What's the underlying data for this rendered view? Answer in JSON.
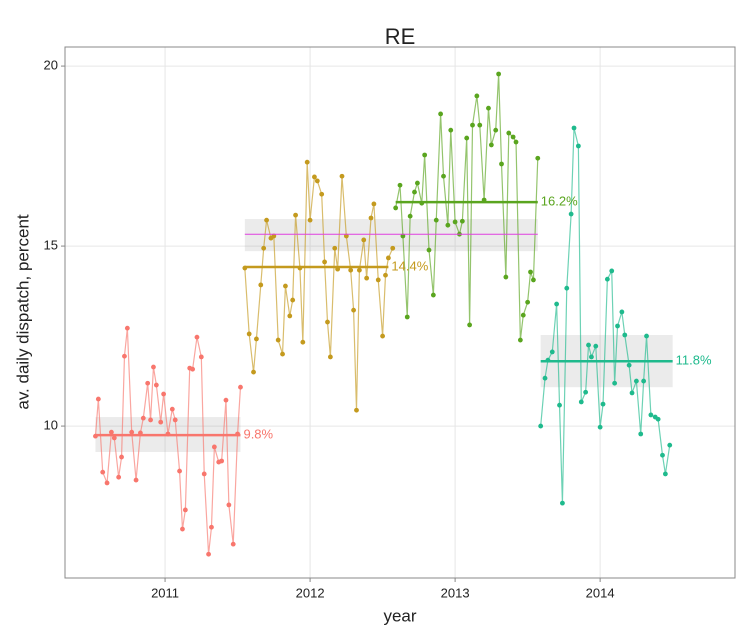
{
  "chart_data": {
    "type": "line",
    "title": "RE",
    "xlabel": "year",
    "ylabel": "av. daily dispatch, percent",
    "xlim": [
      2010.31,
      2014.93
    ],
    "ylim": [
      5.78,
      20.53
    ],
    "xticks": [
      2011,
      2012,
      2013,
      2014
    ],
    "yticks": [
      10,
      15,
      20
    ],
    "grid": true,
    "series": [
      {
        "color": "#f8766d",
        "x": [
          2010.52,
          2010.54,
          2010.57,
          2010.6,
          2010.63,
          2010.65,
          2010.68,
          2010.7,
          2010.72,
          2010.74,
          2010.77,
          2010.8,
          2010.83,
          2010.85,
          2010.88,
          2010.9,
          2010.92,
          2010.94,
          2010.97,
          2010.99,
          2011.02,
          2011.05,
          2011.07,
          2011.1,
          2011.12,
          2011.14,
          2011.17,
          2011.19,
          2011.22,
          2011.25,
          2011.27,
          2011.3,
          2011.32,
          2011.34,
          2011.37,
          2011.39,
          2011.42,
          2011.44,
          2011.47,
          2011.5,
          2011.52
        ],
        "values": [
          9.72,
          10.75,
          8.72,
          8.42,
          9.83,
          9.67,
          8.58,
          9.14,
          11.94,
          12.72,
          9.83,
          8.5,
          9.81,
          10.22,
          11.19,
          10.17,
          11.64,
          11.14,
          10.11,
          10.89,
          9.78,
          10.47,
          10.17,
          8.75,
          7.14,
          7.67,
          11.61,
          11.58,
          12.47,
          11.92,
          8.67,
          6.44,
          7.19,
          9.42,
          9.0,
          9.03,
          10.72,
          7.81,
          6.72,
          9.78,
          11.08
        ]
      },
      {
        "color": "#c49a1e",
        "x": [
          2011.55,
          2011.58,
          2011.61,
          2011.63,
          2011.66,
          2011.68,
          2011.7,
          2011.73,
          2011.75,
          2011.78,
          2011.81,
          2011.83,
          2011.86,
          2011.88,
          2011.9,
          2011.93,
          2011.95,
          2011.98,
          2012.0,
          2012.03,
          2012.05,
          2012.08,
          2012.1,
          2012.12,
          2012.14,
          2012.17,
          2012.19,
          2012.22,
          2012.25,
          2012.28,
          2012.3,
          2012.32,
          2012.34,
          2012.37,
          2012.39,
          2012.42,
          2012.44,
          2012.47,
          2012.5,
          2012.52,
          2012.54,
          2012.57
        ],
        "values": [
          14.39,
          12.56,
          11.5,
          12.42,
          13.92,
          14.94,
          15.72,
          15.22,
          15.28,
          12.39,
          12.0,
          13.89,
          13.06,
          13.5,
          15.86,
          14.39,
          12.33,
          17.33,
          15.72,
          16.92,
          16.81,
          16.44,
          14.56,
          12.89,
          11.92,
          14.94,
          14.36,
          16.94,
          15.28,
          14.33,
          13.22,
          10.44,
          14.33,
          15.17,
          14.11,
          15.78,
          16.17,
          14.06,
          12.5,
          14.19,
          14.67,
          14.94
        ]
      },
      {
        "color": "#5aa51f",
        "x": [
          2012.59,
          2012.62,
          2012.64,
          2012.67,
          2012.69,
          2012.72,
          2012.74,
          2012.77,
          2012.79,
          2012.82,
          2012.85,
          2012.87,
          2012.9,
          2012.92,
          2012.95,
          2012.97,
          2013.0,
          2013.03,
          2013.05,
          2013.08,
          2013.1,
          2013.12,
          2013.15,
          2013.17,
          2013.2,
          2013.23,
          2013.25,
          2013.28,
          2013.3,
          2013.32,
          2013.35,
          2013.37,
          2013.4,
          2013.42,
          2013.45,
          2013.47,
          2013.5,
          2013.52,
          2013.54,
          2013.57
        ],
        "values": [
          16.06,
          16.69,
          15.28,
          13.03,
          15.83,
          16.5,
          16.75,
          16.19,
          17.53,
          14.89,
          13.64,
          15.72,
          18.67,
          16.94,
          15.58,
          18.22,
          15.67,
          15.33,
          15.69,
          18.0,
          12.81,
          18.36,
          19.17,
          18.36,
          16.28,
          18.83,
          17.81,
          18.22,
          19.78,
          17.28,
          14.14,
          18.14,
          18.03,
          17.89,
          12.39,
          13.08,
          13.44,
          14.28,
          14.06,
          17.44
        ]
      },
      {
        "color": "#1fba8d",
        "x": [
          2013.59,
          2013.62,
          2013.64,
          2013.67,
          2013.7,
          2013.72,
          2013.74,
          2013.77,
          2013.8,
          2013.82,
          2013.85,
          2013.87,
          2013.9,
          2013.92,
          2013.94,
          2013.97,
          2014.0,
          2014.02,
          2014.05,
          2014.08,
          2014.1,
          2014.12,
          2014.15,
          2014.17,
          2014.2,
          2014.22,
          2014.25,
          2014.28,
          2014.3,
          2014.32,
          2014.35,
          2014.38,
          2014.4,
          2014.43,
          2014.45,
          2014.48
        ],
        "values": [
          10.0,
          11.33,
          11.83,
          12.06,
          13.39,
          10.58,
          7.86,
          13.83,
          15.89,
          18.28,
          17.78,
          10.67,
          10.94,
          12.25,
          11.92,
          12.22,
          9.97,
          10.61,
          14.08,
          14.31,
          11.19,
          12.78,
          13.17,
          12.53,
          11.69,
          10.92,
          11.25,
          9.78,
          11.25,
          12.5,
          10.31,
          10.25,
          10.19,
          9.19,
          8.67,
          9.47
        ]
      }
    ],
    "means": [
      {
        "label": "9.8%",
        "value": 9.75,
        "x": [
          2010.52,
          2011.52
        ],
        "band": [
          9.28,
          10.25
        ]
      },
      {
        "label": "14.4%",
        "value": 14.42,
        "x": [
          2011.55,
          2012.54
        ]
      },
      {
        "label": "16.2%",
        "value": 16.22,
        "x": [
          2012.59,
          2013.57
        ]
      },
      {
        "label": "11.8%",
        "value": 11.8,
        "x": [
          2013.59,
          2014.5
        ],
        "band": [
          11.08,
          12.53
        ]
      }
    ],
    "overall": {
      "value": 15.33,
      "x": [
        2011.55,
        2013.57
      ],
      "band": [
        14.86,
        15.75
      ],
      "color": "#e040e0"
    }
  }
}
